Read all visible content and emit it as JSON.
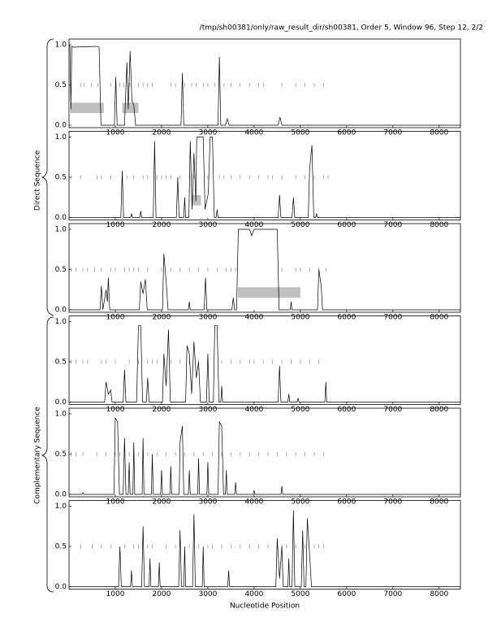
{
  "header": {
    "title": "/tmp/sh00381/only/raw_result_dir/sh00381, Order 5, Window 96, Step 12, 2/2"
  },
  "axis_labels": {
    "x": "Nucleotide Position",
    "direct": "Direct Sequence",
    "complementary": "Complementary Sequence"
  },
  "chart_data": [
    {
      "type": "line",
      "color": "#000000",
      "marker_color": "#888888",
      "region_color": "#c0c0c0",
      "xlim": [
        0,
        8460
      ],
      "xticks": [
        1000,
        2000,
        3000,
        4000,
        5000,
        6000,
        7000,
        8000
      ],
      "ylim": [
        0,
        1
      ],
      "yticks": [
        {
          "value": 0,
          "label": "0.0"
        },
        {
          "value": 0.5,
          "label": "0.5"
        },
        {
          "value": 1,
          "label": "1.0"
        }
      ],
      "x": [
        0,
        20,
        40,
        60,
        100,
        600,
        650,
        690,
        980,
        1010,
        1040,
        1200,
        1250,
        1280,
        1320,
        1360,
        1400,
        1440,
        2420,
        2450,
        2480,
        3220,
        3250,
        3280,
        3380,
        3420,
        3460,
        4520,
        4560,
        4600,
        8460
      ],
      "values": [
        1.0,
        0.98,
        0.2,
        0.98,
        0.97,
        0.98,
        0.97,
        0,
        0,
        0.6,
        0,
        0,
        0.78,
        0.2,
        0.92,
        0.3,
        0.25,
        0,
        0,
        0.65,
        0,
        0,
        0.85,
        0,
        0,
        0.08,
        0,
        0,
        0.1,
        0,
        0
      ],
      "markers": [
        250,
        330,
        480,
        620,
        900,
        1100,
        1180,
        1310,
        1500,
        1600,
        1700,
        1800,
        2200,
        2300,
        2500,
        2650,
        2750,
        2900,
        3000,
        3150,
        3350,
        3500,
        3700,
        3900,
        4100,
        4200,
        4600,
        4900,
        5100,
        5300,
        5500
      ],
      "regions": [
        {
          "start": 0,
          "end": 750
        },
        {
          "start": 1150,
          "end": 1500
        }
      ]
    },
    {
      "type": "line",
      "color": "#000000",
      "marker_color": "#888888",
      "region_color": "#c0c0c0",
      "xlim": [
        0,
        8460
      ],
      "xticks": [
        1000,
        2000,
        3000,
        4000,
        5000,
        6000,
        7000,
        8000
      ],
      "ylim": [
        0,
        1
      ],
      "yticks": [
        {
          "value": 0,
          "label": "0.0"
        },
        {
          "value": 0.5,
          "label": "0.5"
        },
        {
          "value": 1,
          "label": "1.0"
        }
      ],
      "x": [
        0,
        1120,
        1150,
        1180,
        1330,
        1350,
        1370,
        1530,
        1550,
        1570,
        1820,
        1850,
        1880,
        2320,
        2350,
        2380,
        2480,
        2500,
        2520,
        2590,
        2620,
        2660,
        2700,
        2740,
        2760,
        2900,
        2940,
        3010,
        3050,
        3100,
        3140,
        3180,
        3200,
        3220,
        4520,
        4550,
        4580,
        4820,
        4850,
        4880,
        5170,
        5200,
        5250,
        5290,
        5330,
        5350,
        5370,
        8460
      ],
      "values": [
        0,
        0,
        0.58,
        0,
        0,
        0.05,
        0,
        0,
        0.08,
        0,
        0,
        0.95,
        0,
        0,
        0.5,
        0,
        0,
        0.25,
        0,
        0,
        0.95,
        0.1,
        0.8,
        0.2,
        1.0,
        1.0,
        0.1,
        0.3,
        1.0,
        1.0,
        0,
        0,
        0.1,
        0,
        0,
        0.28,
        0,
        0,
        0.25,
        0,
        0,
        0.6,
        0.9,
        0,
        0,
        0.05,
        0,
        0
      ],
      "markers": [
        50,
        250,
        600,
        700,
        900,
        1250,
        1400,
        1600,
        1700,
        1900,
        2000,
        2100,
        2200,
        2400,
        2600,
        2700,
        3000,
        3250,
        3350,
        3500,
        3700,
        3900,
        4100,
        4300,
        4400,
        4600,
        4900,
        5100,
        5300,
        5500,
        5600
      ],
      "regions": [
        {
          "start": 2650,
          "end": 2850
        }
      ]
    },
    {
      "type": "line",
      "color": "#000000",
      "marker_color": "#888888",
      "region_color": "#c0c0c0",
      "xlim": [
        0,
        8460
      ],
      "xticks": [
        1000,
        2000,
        3000,
        4000,
        5000,
        6000,
        7000,
        8000
      ],
      "ylim": [
        0,
        1
      ],
      "yticks": [
        {
          "value": 0,
          "label": "0.0"
        },
        {
          "value": 0.5,
          "label": "0.5"
        },
        {
          "value": 1,
          "label": "1.0"
        }
      ],
      "x": [
        0,
        670,
        700,
        730,
        760,
        800,
        830,
        850,
        880,
        1520,
        1550,
        1600,
        1650,
        1690,
        2020,
        2050,
        2100,
        2140,
        2580,
        2600,
        2620,
        2920,
        2950,
        2980,
        3520,
        3550,
        3580,
        3620,
        3660,
        3900,
        3950,
        4000,
        4500,
        4540,
        4780,
        4800,
        4820,
        5370,
        5400,
        5450,
        5480,
        8460
      ],
      "values": [
        0,
        0,
        0.3,
        0,
        0.1,
        0.25,
        0.1,
        0.4,
        0,
        0,
        0.35,
        0.2,
        0.38,
        0,
        0,
        0.7,
        0.35,
        0,
        0,
        0.1,
        0,
        0,
        0.4,
        0,
        0,
        0.15,
        0,
        0,
        1.0,
        1.0,
        0.92,
        1.0,
        1.0,
        0,
        0,
        0.1,
        0,
        0,
        0.5,
        0.3,
        0,
        0
      ],
      "markers": [
        50,
        150,
        300,
        400,
        550,
        700,
        900,
        1000,
        1200,
        1300,
        1400,
        1500,
        1700,
        2000,
        2200,
        2400,
        2600,
        2800,
        3000,
        3200,
        3400,
        3500,
        3600,
        4600,
        4900,
        5000,
        5200,
        5400,
        5550
      ],
      "regions": [
        {
          "start": 3650,
          "end": 5000
        }
      ]
    },
    {
      "type": "line",
      "color": "#000000",
      "marker_color": "#888888",
      "region_color": "#c0c0c0",
      "xlim": [
        0,
        8460
      ],
      "xticks": [
        1000,
        2000,
        3000,
        4000,
        5000,
        6000,
        7000,
        8000
      ],
      "ylim": [
        0,
        1
      ],
      "yticks": [
        {
          "value": 0,
          "label": "0.0"
        },
        {
          "value": 0.5,
          "label": "0.5"
        },
        {
          "value": 1,
          "label": "1.0"
        }
      ],
      "x": [
        0,
        770,
        800,
        850,
        900,
        930,
        1170,
        1200,
        1230,
        1460,
        1500,
        1550,
        1590,
        1670,
        1700,
        1730,
        2020,
        2050,
        2100,
        2150,
        2190,
        2520,
        2550,
        2600,
        2650,
        2700,
        2750,
        2800,
        2840,
        2970,
        3000,
        3030,
        3120,
        3150,
        3200,
        3240,
        3280,
        3300,
        3320,
        4520,
        4550,
        4580,
        4730,
        4750,
        4770,
        4930,
        4950,
        4970,
        5530,
        5550,
        5570,
        8460
      ],
      "values": [
        0,
        0,
        0.25,
        0.1,
        0.15,
        0,
        0,
        0.4,
        0,
        0,
        0.95,
        0.95,
        0,
        0,
        0.3,
        0,
        0,
        0.6,
        0.2,
        0.9,
        0,
        0,
        0.7,
        0.6,
        0.1,
        0.75,
        0.3,
        0.5,
        0,
        0,
        0.6,
        0,
        0,
        0.95,
        0.95,
        0,
        0,
        0.2,
        0,
        0,
        0.45,
        0,
        0,
        0.1,
        0,
        0,
        0.05,
        0,
        0,
        0.25,
        0,
        0
      ],
      "markers": [
        50,
        150,
        300,
        400,
        700,
        800,
        1000,
        1300,
        1500,
        1700,
        1800,
        1900,
        2200,
        2400,
        2600,
        2800,
        3000,
        3300,
        3500,
        3700,
        3900,
        4000,
        4200,
        4400,
        4600,
        4800,
        5000,
        5200,
        5400
      ]
    },
    {
      "type": "line",
      "color": "#000000",
      "marker_color": "#888888",
      "region_color": "#c0c0c0",
      "xlim": [
        0,
        8460
      ],
      "xticks": [
        1000,
        2000,
        3000,
        4000,
        5000,
        6000,
        7000,
        8000
      ],
      "ylim": [
        0,
        1
      ],
      "yticks": [
        {
          "value": 0,
          "label": "0.0"
        },
        {
          "value": 0.5,
          "label": "0.5"
        },
        {
          "value": 1,
          "label": "1.0"
        }
      ],
      "x": [
        0,
        280,
        300,
        320,
        970,
        1000,
        1050,
        1090,
        1170,
        1200,
        1230,
        1280,
        1300,
        1320,
        1380,
        1400,
        1420,
        1580,
        1600,
        1620,
        1780,
        1800,
        1820,
        1980,
        2000,
        2020,
        2180,
        2200,
        2220,
        2380,
        2400,
        2450,
        2480,
        2580,
        2600,
        2620,
        2780,
        2800,
        2820,
        2980,
        3000,
        3020,
        3220,
        3250,
        3300,
        3340,
        3380,
        3400,
        3420,
        3580,
        3600,
        3620,
        3980,
        4000,
        4020,
        4580,
        4600,
        4620,
        8460
      ],
      "values": [
        0,
        0,
        0.02,
        0,
        0,
        0.95,
        0.9,
        0,
        0,
        0.7,
        0,
        0,
        0.4,
        0,
        0,
        0.65,
        0,
        0,
        0.7,
        0,
        0,
        0.5,
        0,
        0,
        0.3,
        0,
        0,
        0.35,
        0,
        0,
        0.65,
        0.85,
        0,
        0,
        0.3,
        0,
        0,
        0.45,
        0,
        0,
        0.4,
        0,
        0,
        0.9,
        0.85,
        0,
        0,
        0.3,
        0,
        0,
        0.15,
        0,
        0,
        0.05,
        0,
        0,
        0.1,
        0,
        0
      ],
      "markers": [
        50,
        150,
        300,
        600,
        800,
        1000,
        1100,
        1300,
        1500,
        1700,
        1900,
        2100,
        2300,
        2500,
        2700,
        2900,
        3100,
        3300,
        3500,
        3700,
        3900,
        4100,
        4300,
        4500,
        4700,
        4900,
        5100,
        5300,
        5500
      ]
    },
    {
      "type": "line",
      "color": "#000000",
      "marker_color": "#888888",
      "region_color": "#c0c0c0",
      "xlim": [
        0,
        8460
      ],
      "xticks": [
        1000,
        2000,
        3000,
        4000,
        5000,
        6000,
        7000,
        8000
      ],
      "ylim": [
        0,
        1
      ],
      "yticks": [
        {
          "value": 0,
          "label": "0.0"
        },
        {
          "value": 0.5,
          "label": "0.5"
        },
        {
          "value": 1,
          "label": "1.0"
        }
      ],
      "x": [
        0,
        1070,
        1100,
        1130,
        1330,
        1350,
        1370,
        1570,
        1600,
        1630,
        1730,
        1750,
        1770,
        1930,
        1950,
        1970,
        2370,
        2400,
        2430,
        2480,
        2500,
        2520,
        2670,
        2700,
        2730,
        2880,
        2900,
        2920,
        3430,
        3450,
        3470,
        4470,
        4500,
        4550,
        4600,
        4630,
        4730,
        4750,
        4770,
        4820,
        4850,
        4880,
        5020,
        5050,
        5080,
        5120,
        5150,
        5200,
        5240,
        8460
      ],
      "values": [
        0,
        0,
        0.5,
        0,
        0,
        0.2,
        0,
        0,
        0.75,
        0,
        0,
        0.35,
        0,
        0,
        0.3,
        0,
        0,
        0.7,
        0,
        0,
        0.5,
        0,
        0,
        0.9,
        0,
        0,
        0.5,
        0,
        0,
        0.2,
        0,
        0,
        0.6,
        0.1,
        0.5,
        0,
        0,
        0.35,
        0,
        0,
        0.95,
        0,
        0,
        0.7,
        0,
        0,
        0.85,
        0.4,
        0,
        0
      ],
      "markers": [
        250,
        500,
        700,
        900,
        1200,
        1400,
        1500,
        1700,
        1800,
        2100,
        2300,
        2600,
        2800,
        3000,
        3100,
        3300,
        3500,
        3700,
        3900,
        4100,
        4300,
        4600,
        4700,
        4900,
        5100,
        5300,
        5400,
        5500
      ]
    }
  ]
}
